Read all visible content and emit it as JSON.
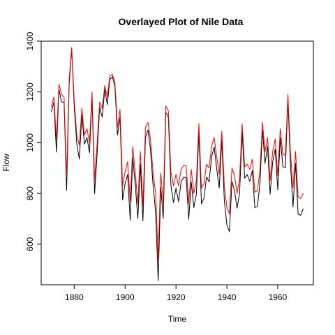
{
  "chart_data": {
    "type": "line",
    "title": "Overlayed Plot of Nile Data",
    "xlabel": "Time",
    "ylabel": "Flow",
    "xlim": [
      1867,
      1974
    ],
    "ylim": [
      440,
      1400
    ],
    "x_ticks": [
      1880,
      1900,
      1920,
      1940,
      1960
    ],
    "y_ticks": [
      600,
      800,
      1000,
      1200,
      1400
    ],
    "grid": false,
    "x": [
      1871,
      1872,
      1873,
      1874,
      1875,
      1876,
      1877,
      1878,
      1879,
      1880,
      1881,
      1882,
      1883,
      1884,
      1885,
      1886,
      1887,
      1888,
      1889,
      1890,
      1891,
      1892,
      1893,
      1894,
      1895,
      1896,
      1897,
      1898,
      1899,
      1900,
      1901,
      1902,
      1903,
      1904,
      1905,
      1906,
      1907,
      1908,
      1909,
      1910,
      1911,
      1912,
      1913,
      1914,
      1915,
      1916,
      1917,
      1918,
      1919,
      1920,
      1921,
      1922,
      1923,
      1924,
      1925,
      1926,
      1927,
      1928,
      1929,
      1930,
      1931,
      1932,
      1933,
      1934,
      1935,
      1936,
      1937,
      1938,
      1939,
      1940,
      1941,
      1942,
      1943,
      1944,
      1945,
      1946,
      1947,
      1948,
      1949,
      1950,
      1951,
      1952,
      1953,
      1954,
      1955,
      1956,
      1957,
      1958,
      1959,
      1960,
      1961,
      1962,
      1963,
      1964,
      1965,
      1966,
      1967,
      1968,
      1969,
      1970
    ],
    "series": [
      {
        "color": "#000000",
        "values": [
          1120,
          1160,
          963,
          1210,
          1160,
          1160,
          813,
          1230,
          1370,
          1140,
          995,
          935,
          1110,
          994,
          1020,
          960,
          1180,
          799,
          958,
          1140,
          1100,
          1210,
          1150,
          1250,
          1260,
          1220,
          1030,
          1100,
          774,
          840,
          874,
          694,
          940,
          833,
          701,
          916,
          692,
          1020,
          1050,
          969,
          831,
          726,
          456,
          824,
          702,
          1120,
          1100,
          832,
          764,
          821,
          768,
          845,
          864,
          862,
          698,
          845,
          744,
          796,
          1040,
          759,
          781,
          865,
          845,
          944,
          984,
          897,
          822,
          1010,
          771,
          676,
          649,
          846,
          812,
          742,
          801,
          1040,
          860,
          874,
          848,
          890,
          744,
          749,
          838,
          1050,
          918,
          986,
          797,
          923,
          975,
          815,
          1020,
          906,
          901,
          1170,
          912,
          746,
          919,
          718,
          714,
          740
        ]
      },
      {
        "color": "#ff0000",
        "values": [
          1140,
          1180,
          1010,
          1230,
          1190,
          1180,
          865,
          1250,
          1375,
          1165,
          1030,
          990,
          1135,
          1030,
          1055,
          1000,
          1200,
          850,
          1000,
          1160,
          1135,
          1225,
          1180,
          1265,
          1270,
          1235,
          1060,
          1130,
          830,
          885,
          925,
          770,
          985,
          880,
          760,
          965,
          750,
          1060,
          1080,
          1010,
          880,
          800,
          545,
          880,
          760,
          1145,
          1125,
          885,
          830,
          875,
          830,
          895,
          910,
          910,
          760,
          895,
          800,
          850,
          1075,
          820,
          840,
          915,
          900,
          985,
          1020,
          945,
          875,
          1045,
          830,
          745,
          720,
          900,
          870,
          800,
          860,
          1075,
          905,
          915,
          895,
          935,
          805,
          810,
          890,
          1080,
          965,
          1020,
          850,
          965,
          1015,
          870,
          1055,
          955,
          950,
          1190,
          960,
          820,
          965,
          785,
          780,
          800
        ]
      }
    ]
  }
}
